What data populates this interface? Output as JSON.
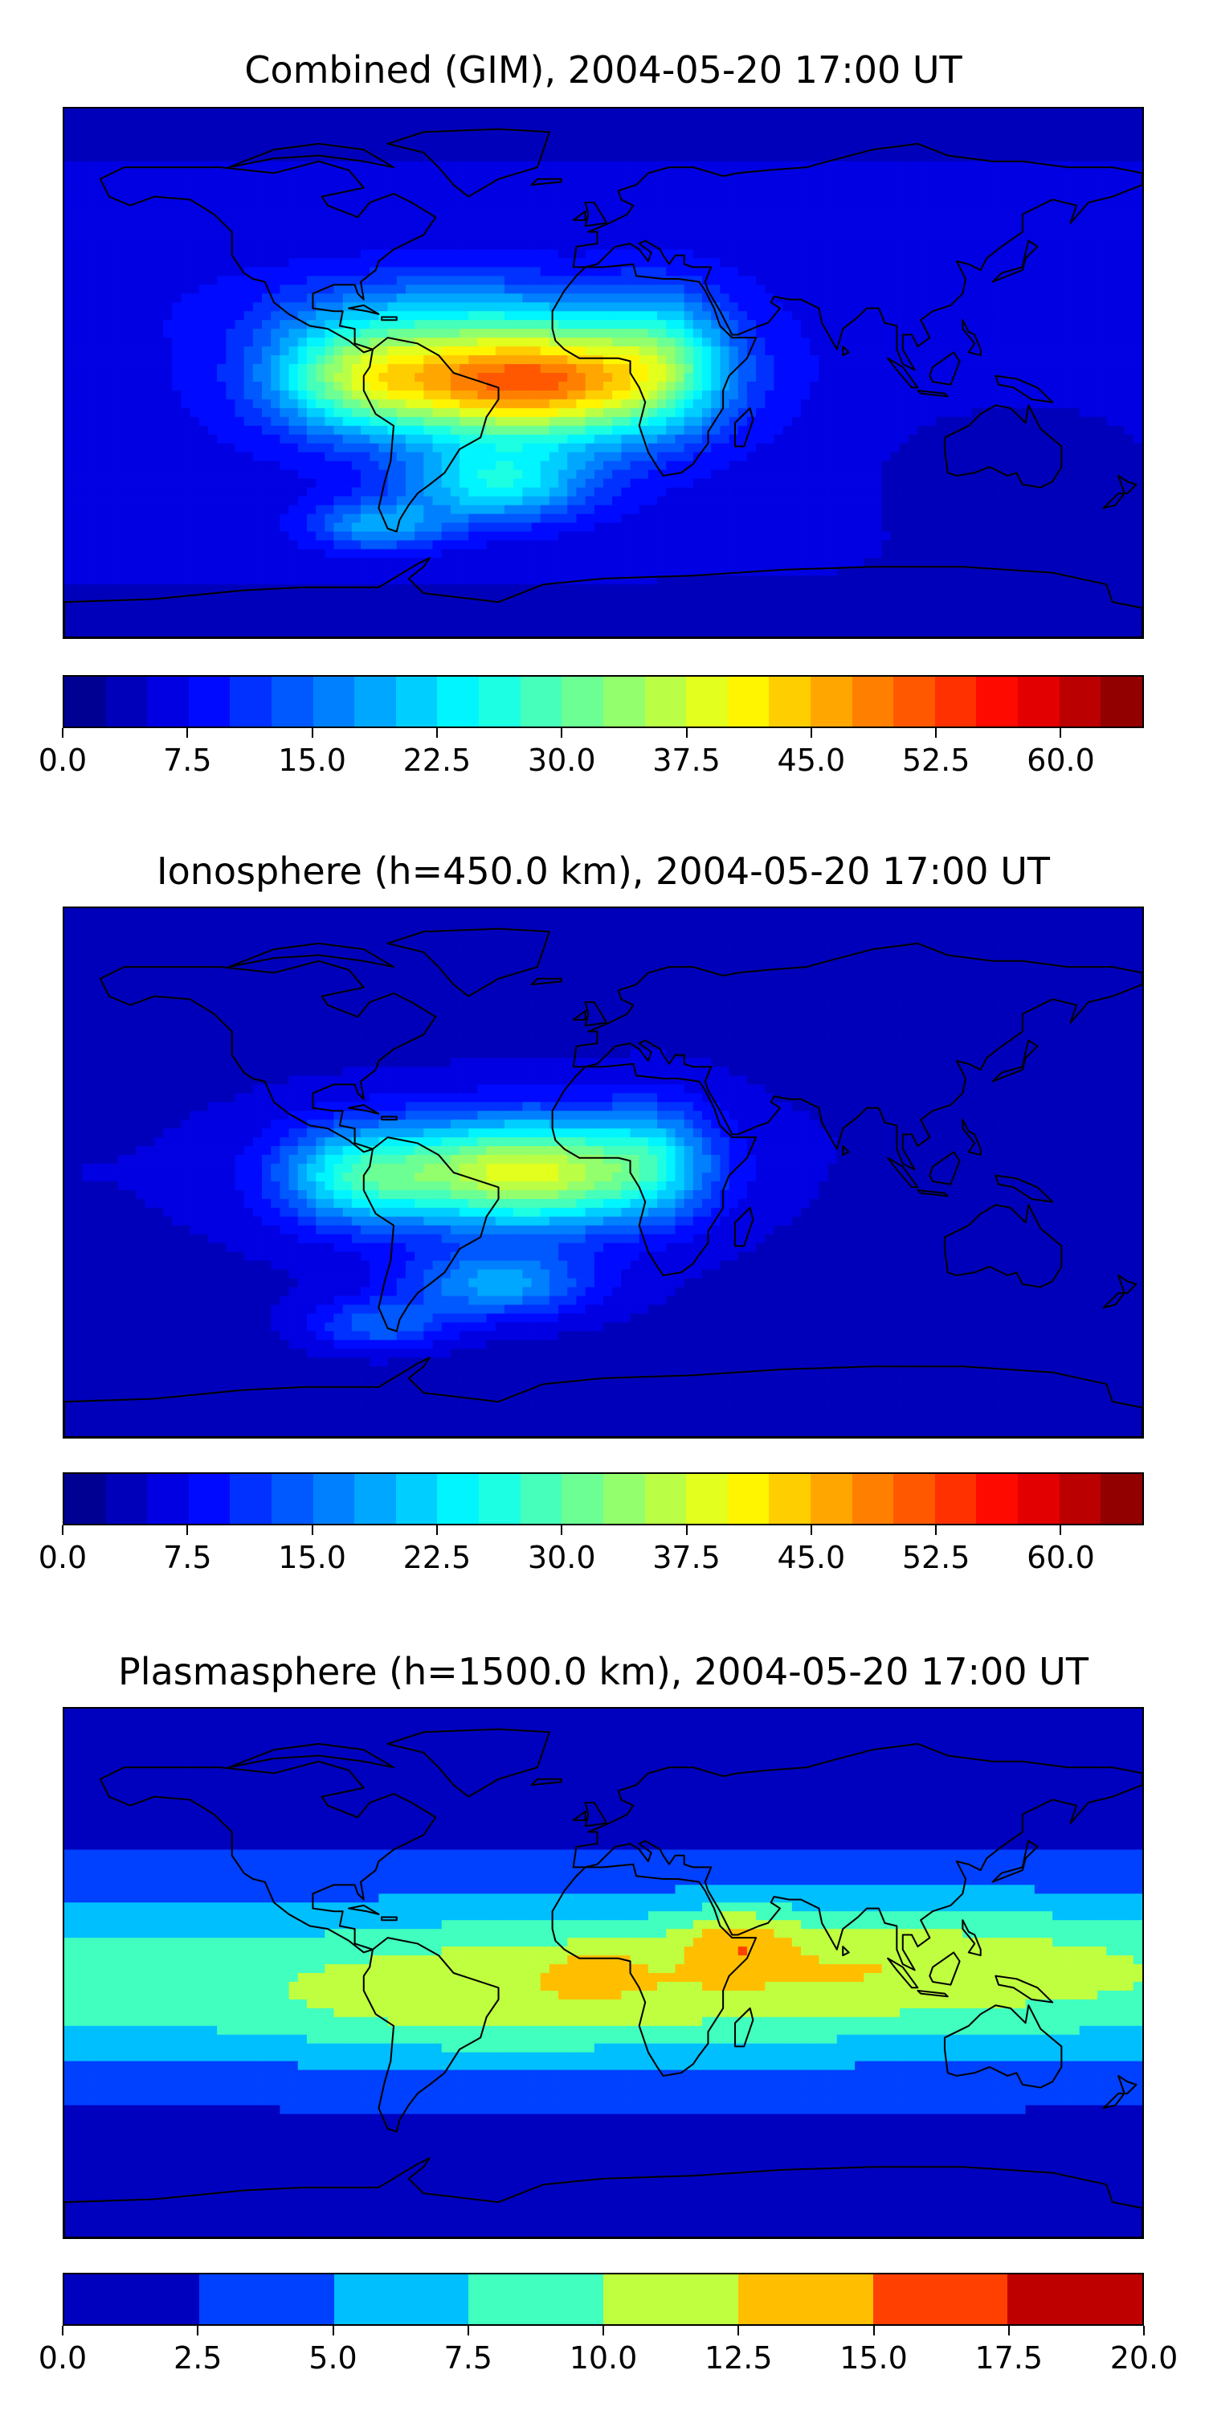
{
  "chart_data": [
    {
      "type": "heatmap",
      "title": "Combined (GIM), 2004-05-20 17:00 UT",
      "projection": "plate-carree world map with coastlines",
      "colormap": "jet",
      "colorbar": {
        "levels_min": 0.0,
        "levels_max": 65.0,
        "levels_step": 2.5,
        "ticks": [
          "0.0",
          "7.5",
          "15.0",
          "22.5",
          "30.0",
          "37.5",
          "45.0",
          "52.5",
          "60.0"
        ]
      },
      "value_range": [
        1,
        52
      ],
      "features": [
        {
          "region": "tropical Atlantic / northern South America / West Africa",
          "approx_value": 50,
          "note": "main maximum"
        },
        {
          "region": "eastern Pacific off South America",
          "approx_value": 35
        },
        {
          "region": "South Atlantic",
          "approx_value": 30
        },
        {
          "region": "Asia / Australia / western Pacific",
          "approx_value": 10
        },
        {
          "region": "polar regions",
          "approx_value": 5
        }
      ]
    },
    {
      "type": "heatmap",
      "title": "Ionosphere  (h=450.0 km), 2004-05-20 17:00 UT",
      "projection": "plate-carree world map with coastlines",
      "colormap": "jet",
      "colorbar": {
        "levels_min": 0.0,
        "levels_max": 65.0,
        "levels_step": 2.5,
        "ticks": [
          "0.0",
          "7.5",
          "15.0",
          "22.5",
          "30.0",
          "37.5",
          "45.0",
          "52.5",
          "60.0"
        ]
      },
      "value_range": [
        1,
        42
      ],
      "features": [
        {
          "region": "tropical Atlantic / northern South America / West Africa",
          "approx_value": 40,
          "note": "main maximum"
        },
        {
          "region": "eastern Pacific off South America",
          "approx_value": 28
        },
        {
          "region": "South Atlantic",
          "approx_value": 24
        },
        {
          "region": "Asia / Australia / western Pacific",
          "approx_value": 6
        },
        {
          "region": "polar regions",
          "approx_value": 4
        }
      ]
    },
    {
      "type": "heatmap",
      "title": "Plasmasphere (h=1500.0 km), 2004-05-20 17:00 UT",
      "projection": "plate-carree world map with coastlines",
      "colormap": "jet",
      "colorbar": {
        "levels_min": 0.0,
        "levels_max": 20.0,
        "levels_step": 2.5,
        "ticks": [
          "0.0",
          "2.5",
          "5.0",
          "7.5",
          "10.0",
          "12.5",
          "15.0",
          "17.5",
          "20.0"
        ]
      },
      "value_range": [
        1,
        17
      ],
      "features": [
        {
          "region": "East Africa / Arabian Peninsula",
          "approx_value": 15,
          "note": "local maximum"
        },
        {
          "region": "West Africa",
          "approx_value": 13
        },
        {
          "region": "equatorial band (South America to western Pacific)",
          "approx_value": 11
        },
        {
          "region": "low-mid latitudes",
          "approx_value": 8
        },
        {
          "region": "high latitudes",
          "approx_value": 2
        }
      ]
    }
  ]
}
